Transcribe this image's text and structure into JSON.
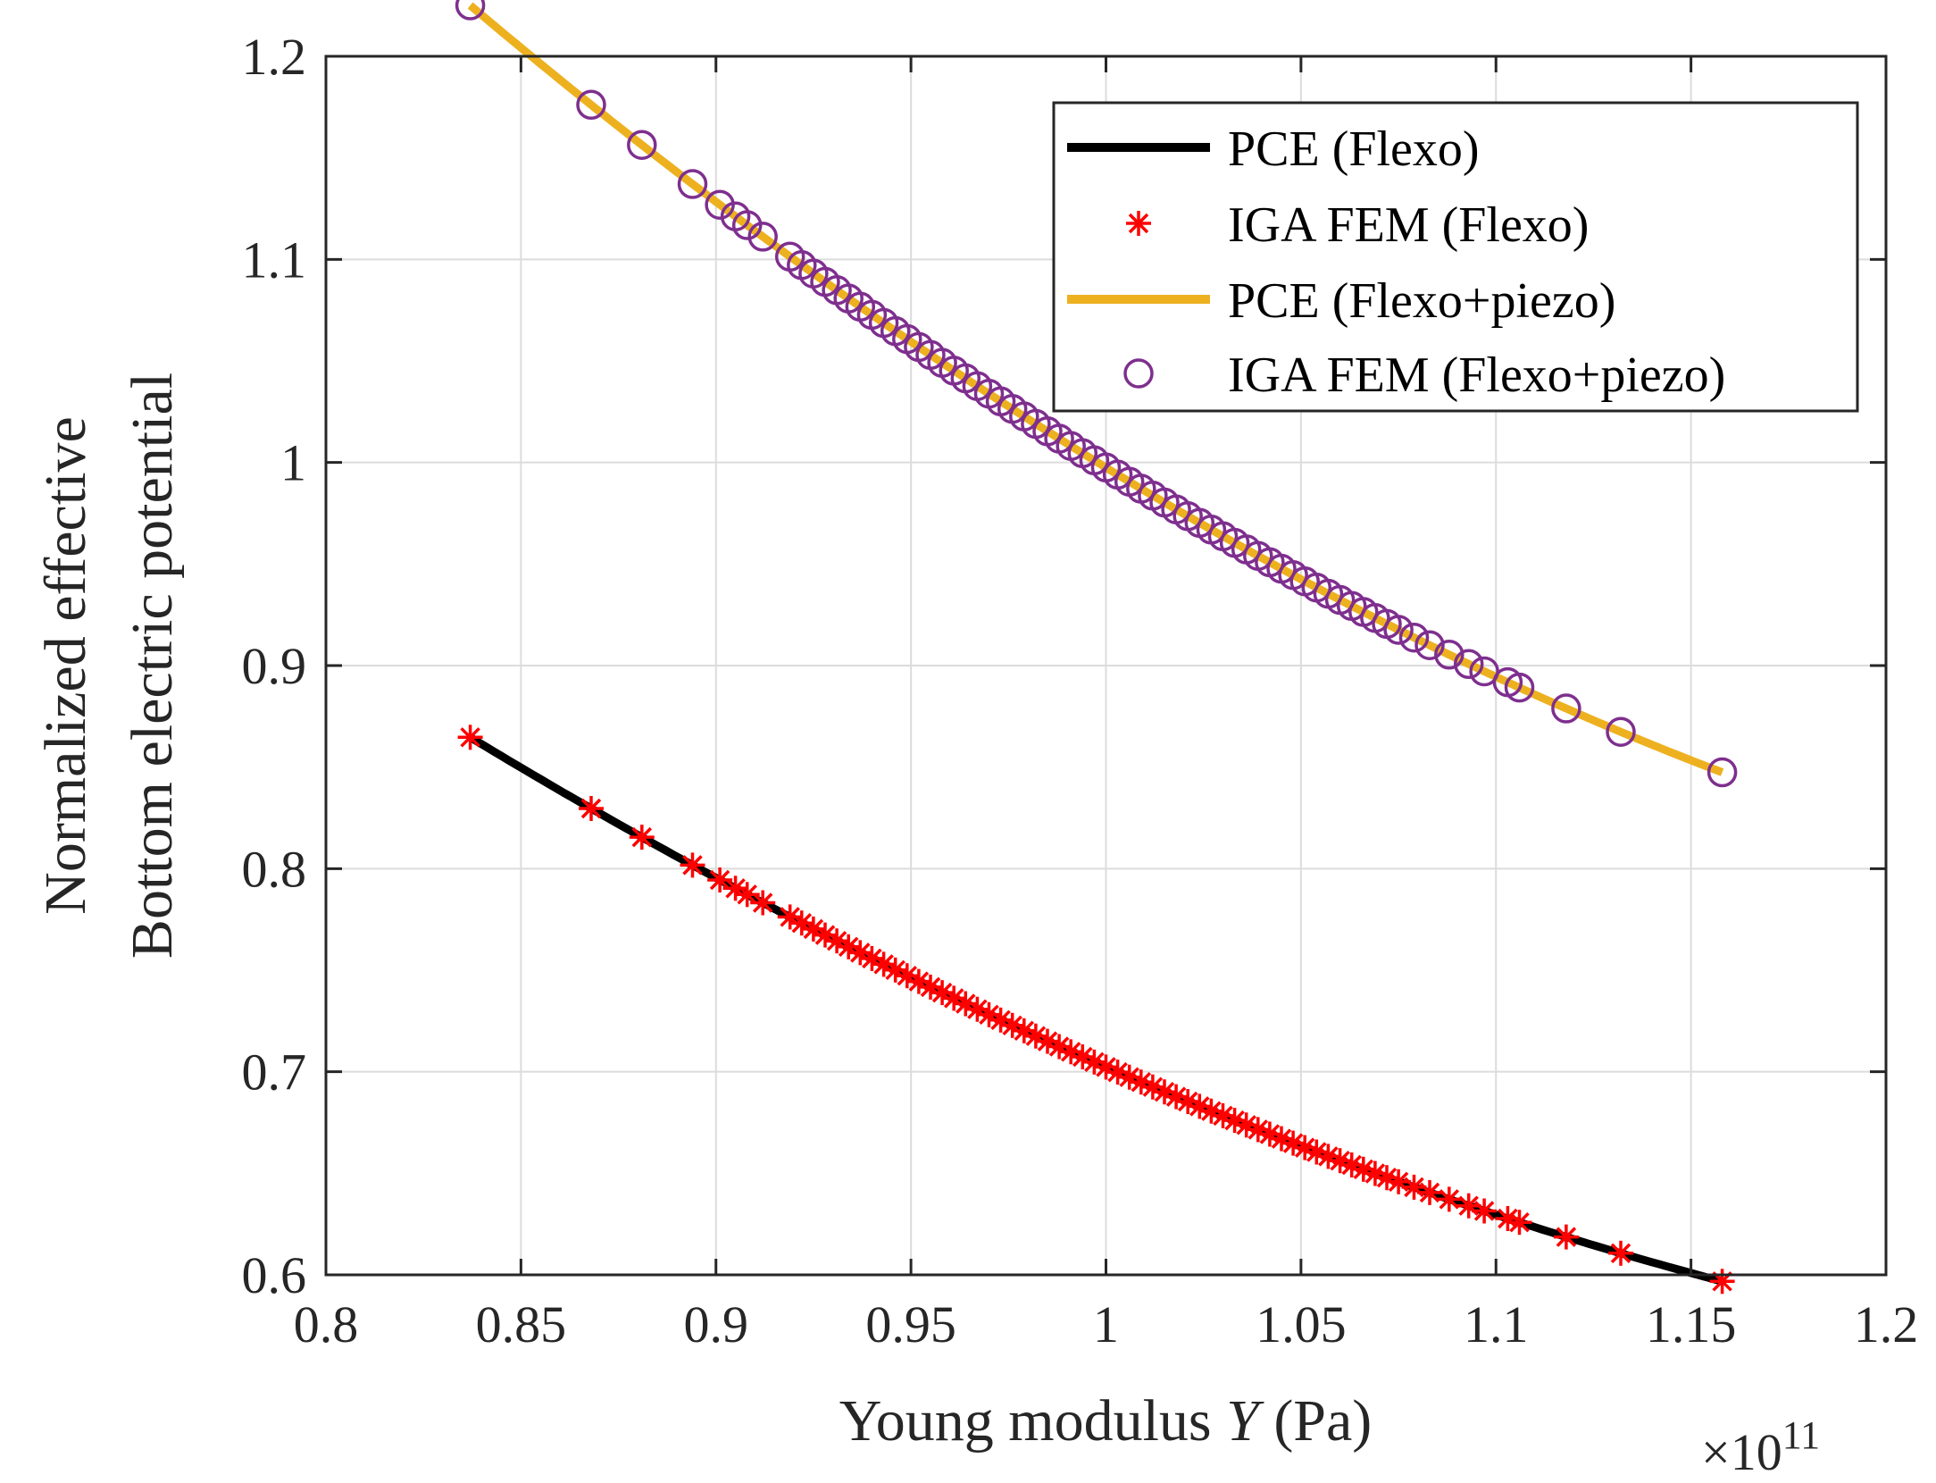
{
  "chart_data": {
    "type": "line",
    "title": "",
    "xlabel_prefix": "Young modulus ",
    "xlabel_var": "Y",
    "xlabel_suffix": " (Pa)",
    "ylabel_line1": "Normalized effective",
    "ylabel_line2": "Bottom electric potential",
    "x_exponent_base": "×10",
    "x_exponent_power": "11",
    "xlim": [
      0.8,
      1.2
    ],
    "ylim": [
      0.6,
      1.2
    ],
    "xticks": [
      0.8,
      0.85,
      0.9,
      0.95,
      1,
      1.05,
      1.1,
      1.15,
      1.2
    ],
    "xtick_labels": [
      "0.8",
      "0.85",
      "0.9",
      "0.95",
      "1",
      "1.05",
      "1.1",
      "1.15",
      "1.2"
    ],
    "yticks": [
      0.6,
      0.7,
      0.8,
      0.9,
      1,
      1.1,
      1.2
    ],
    "ytick_labels": [
      "0.6",
      "0.7",
      "0.8",
      "0.9",
      "1",
      "1.1",
      "1.2"
    ],
    "grid": true,
    "legend_position": "top-right",
    "sample_x": [
      0.837,
      0.868,
      0.881,
      0.894,
      0.901,
      0.905,
      0.908,
      0.912,
      0.919,
      0.922,
      0.925,
      0.928,
      0.931,
      0.934,
      0.937,
      0.94,
      0.943,
      0.946,
      0.949,
      0.952,
      0.955,
      0.958,
      0.961,
      0.964,
      0.967,
      0.97,
      0.973,
      0.976,
      0.979,
      0.982,
      0.985,
      0.988,
      0.991,
      0.994,
      0.997,
      1.0,
      1.003,
      1.006,
      1.009,
      1.012,
      1.015,
      1.018,
      1.021,
      1.024,
      1.027,
      1.03,
      1.033,
      1.036,
      1.039,
      1.042,
      1.045,
      1.048,
      1.051,
      1.054,
      1.057,
      1.06,
      1.063,
      1.066,
      1.069,
      1.072,
      1.075,
      1.079,
      1.083,
      1.088,
      1.093,
      1.097,
      1.103,
      1.106,
      1.118,
      1.132,
      1.158
    ],
    "series": [
      {
        "name": "PCE (Flexo)",
        "kind": "line",
        "color": "#000000",
        "coef": [
          0.7023,
          -0.8295,
          1.0232
        ],
        "x_range": [
          0.837,
          1.158
        ]
      },
      {
        "name": "IGA FEM (Flexo)",
        "kind": "marker-star",
        "color": "#ff0000",
        "coef": [
          0.7023,
          -0.8295,
          1.0232
        ]
      },
      {
        "name": "PCE (Flexo+piezo)",
        "kind": "line",
        "color": "#edb120",
        "coef": [
          0.9975,
          -1.1695,
          1.3908
        ],
        "x_range": [
          0.837,
          1.158
        ]
      },
      {
        "name": "IGA FEM (Flexo+piezo)",
        "kind": "marker-circle",
        "color": "#7e2f8e",
        "coef": [
          0.9975,
          -1.1695,
          1.3908
        ]
      }
    ],
    "legend": [
      "PCE (Flexo)",
      "IGA FEM (Flexo)",
      "PCE (Flexo+piezo)",
      "IGA FEM (Flexo+piezo)"
    ]
  }
}
